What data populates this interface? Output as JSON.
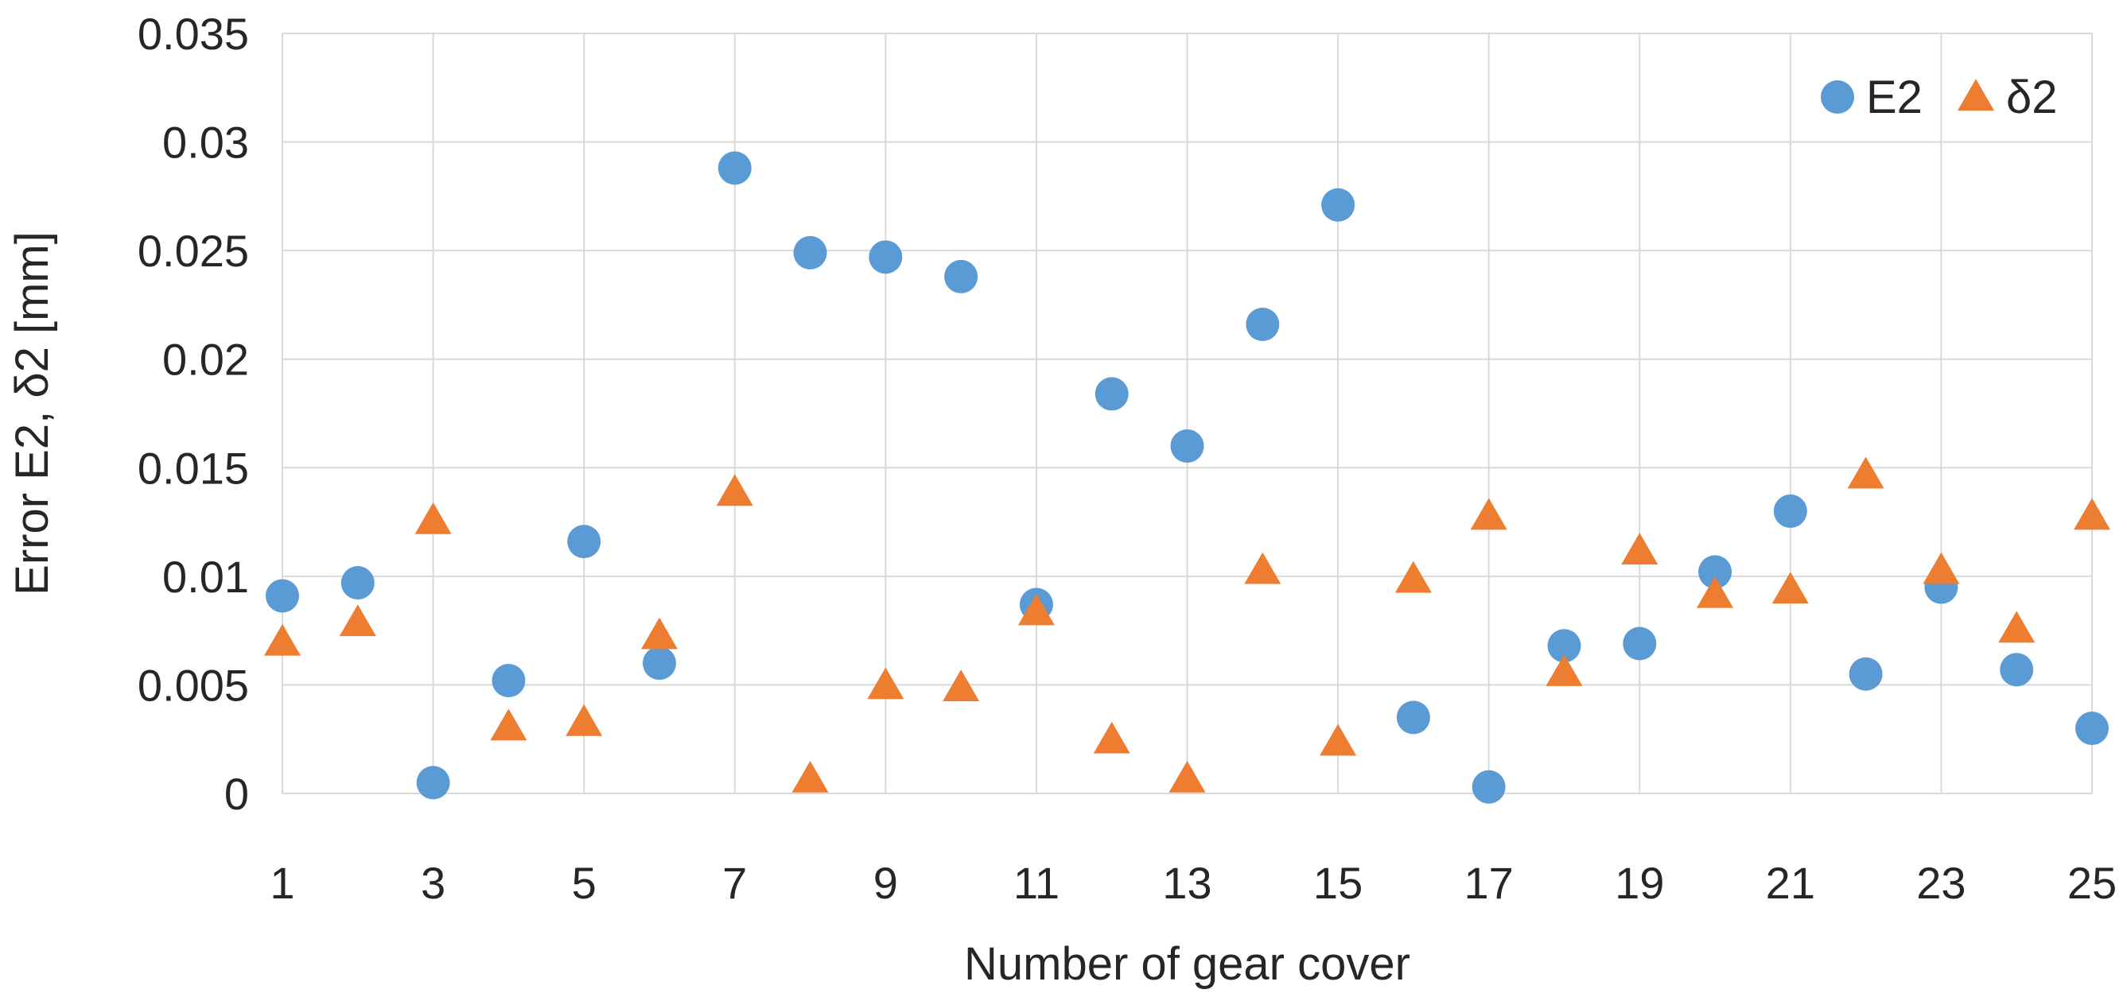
{
  "chart_data": {
    "type": "scatter",
    "xlabel": "Number of gear cover",
    "ylabel": "Error E2, δ2 [mm]",
    "xlim": [
      1,
      25
    ],
    "ylim": [
      0,
      0.035
    ],
    "x_ticks": [
      "1",
      "3",
      "5",
      "7",
      "9",
      "11",
      "13",
      "15",
      "17",
      "19",
      "21",
      "23",
      "25"
    ],
    "x_tick_values": [
      1,
      3,
      5,
      7,
      9,
      11,
      13,
      15,
      17,
      19,
      21,
      23,
      25
    ],
    "y_ticks": [
      "0",
      "0.005",
      "0.01",
      "0.015",
      "0.02",
      "0.025",
      "0.03",
      "0.035"
    ],
    "y_tick_values": [
      0,
      0.005,
      0.01,
      0.015,
      0.02,
      0.025,
      0.03,
      0.035
    ],
    "grid": true,
    "legend_position": "top-right",
    "x": [
      1,
      2,
      3,
      4,
      5,
      6,
      7,
      8,
      9,
      10,
      11,
      12,
      13,
      14,
      15,
      16,
      17,
      18,
      19,
      20,
      21,
      22,
      23,
      24,
      25
    ],
    "series": [
      {
        "name": "E2",
        "marker": "circle",
        "color": "#5b9bd5",
        "values": [
          0.0091,
          0.0097,
          0.0005,
          0.0052,
          0.0116,
          0.006,
          0.0288,
          0.0249,
          0.0247,
          0.0238,
          0.0087,
          0.0184,
          0.016,
          0.0216,
          0.0271,
          0.0035,
          0.0003,
          0.0068,
          0.0069,
          0.0102,
          0.013,
          0.0055,
          0.0095,
          0.0057,
          0.003
        ]
      },
      {
        "name": "δ2",
        "marker": "triangle",
        "color": "#ed7d31",
        "values": [
          0.0069,
          0.0078,
          0.0125,
          0.003,
          0.0032,
          0.0072,
          0.0138,
          0.0006,
          0.0049,
          0.0048,
          0.0083,
          0.0024,
          0.0006,
          0.0102,
          0.0023,
          0.0098,
          0.0127,
          0.0055,
          0.0111,
          0.0091,
          0.0093,
          0.0146,
          0.0102,
          0.0075,
          0.0127
        ]
      }
    ]
  }
}
